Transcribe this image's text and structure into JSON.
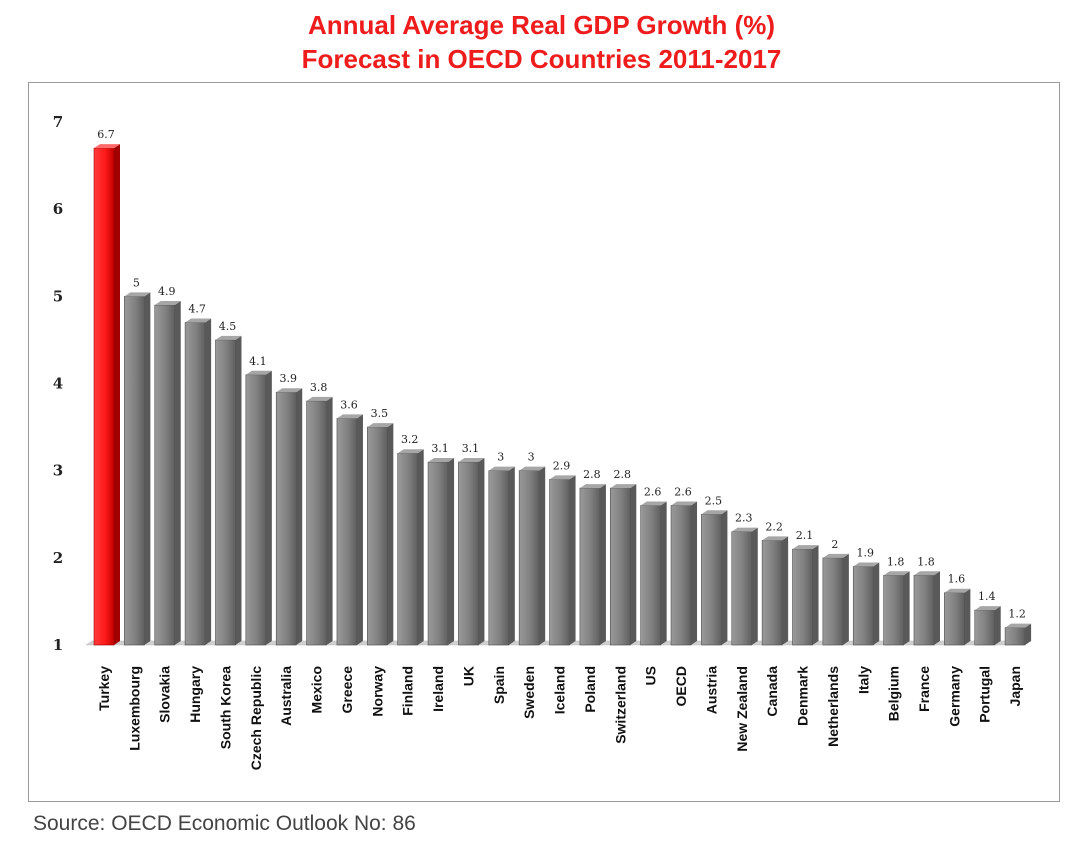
{
  "chart_data": {
    "type": "bar",
    "title_line1": "Annual Average Real GDP Growth (%)",
    "title_line2": "Forecast in OECD Countries 2011-2017",
    "xlabel": "",
    "ylabel": "",
    "ylim": [
      1,
      7
    ],
    "yticks": [
      "1",
      "2",
      "3",
      "4",
      "5",
      "6",
      "7"
    ],
    "grid": false,
    "highlight_color": "#ff1a1a",
    "bar_color": "#7f7f7f",
    "categories": [
      "Turkey",
      "Luxembourg",
      "Slovakia",
      "Hungary",
      "South Korea",
      "Czech Republic",
      "Australia",
      "Mexico",
      "Greece",
      "Norway",
      "Finland",
      "Ireland",
      "UK",
      "Spain",
      "Sweden",
      "Iceland",
      "Poland",
      "Switzerland",
      "US",
      "OECD",
      "Austria",
      "New Zealand",
      "Canada",
      "Denmark",
      "Netherlands",
      "Italy",
      "Belgium",
      "France",
      "Germany",
      "Portugal",
      "Japan"
    ],
    "values": [
      6.7,
      5,
      4.9,
      4.7,
      4.5,
      4.1,
      3.9,
      3.8,
      3.6,
      3.5,
      3.2,
      3.1,
      3.1,
      3,
      3,
      2.9,
      2.8,
      2.8,
      2.6,
      2.6,
      2.5,
      2.3,
      2.2,
      2.1,
      2,
      1.9,
      1.8,
      1.8,
      1.6,
      1.4,
      1.2
    ],
    "value_labels": [
      "6.7",
      "5",
      "4.9",
      "4.7",
      "4.5",
      "4.1",
      "3.9",
      "3.8",
      "3.6",
      "3.5",
      "3.2",
      "3.1",
      "3.1",
      "3",
      "3",
      "2.9",
      "2.8",
      "2.8",
      "2.6",
      "2.6",
      "2.5",
      "2.3",
      "2.2",
      "2.1",
      "2",
      "1.9",
      "1.8",
      "1.8",
      "1.6",
      "1.4",
      "1.2"
    ],
    "highlight_index": 0,
    "source": "Source: OECD Economic Outlook No: 86"
  }
}
